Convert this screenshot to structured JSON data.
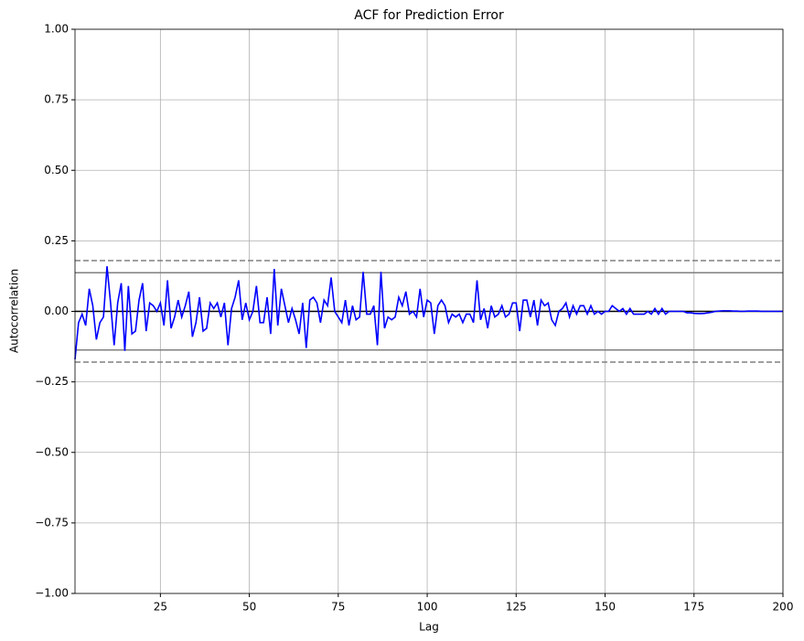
{
  "chart_data": {
    "type": "line",
    "title": "ACF for Prediction Error",
    "x_label": "Lag",
    "y_label": "Autocorrelation",
    "x": [
      1,
      2,
      3,
      4,
      5,
      6,
      7,
      8,
      9,
      10,
      11,
      12,
      13,
      14,
      15,
      16,
      17,
      18,
      19,
      20,
      21,
      22,
      23,
      24,
      25,
      26,
      27,
      28,
      29,
      30,
      31,
      32,
      33,
      34,
      35,
      36,
      37,
      38,
      39,
      40,
      41,
      42,
      43,
      44,
      45,
      46,
      47,
      48,
      49,
      50,
      51,
      52,
      53,
      54,
      55,
      56,
      57,
      58,
      59,
      60,
      61,
      62,
      63,
      64,
      65,
      66,
      67,
      68,
      69,
      70,
      71,
      72,
      73,
      74,
      75,
      76,
      77,
      78,
      79,
      80,
      81,
      82,
      83,
      84,
      85,
      86,
      87,
      88,
      89,
      90,
      91,
      92,
      93,
      94,
      95,
      96,
      97,
      98,
      99,
      100,
      101,
      102,
      103,
      104,
      105,
      106,
      107,
      108,
      109,
      110,
      111,
      112,
      113,
      114,
      115,
      116,
      117,
      118,
      119,
      120,
      121,
      122,
      123,
      124,
      125,
      126,
      127,
      128,
      129,
      130,
      131,
      132,
      133,
      134,
      135,
      136,
      137,
      138,
      139,
      140,
      141,
      142,
      143,
      144,
      145,
      146,
      147,
      148,
      149,
      150,
      151,
      152,
      153,
      154,
      155,
      156,
      157,
      158,
      159,
      160,
      161,
      162,
      163,
      164,
      165,
      166,
      167,
      168,
      169,
      170,
      171,
      172,
      173,
      174,
      175,
      176,
      177,
      178,
      179,
      180,
      181,
      182,
      183,
      184,
      185,
      186,
      187,
      188,
      189,
      190,
      191,
      192,
      193,
      194,
      195,
      196,
      197,
      198,
      199,
      200
    ],
    "values": [
      -0.17,
      -0.04,
      -0.01,
      -0.05,
      0.08,
      0.02,
      -0.1,
      -0.04,
      -0.02,
      0.16,
      0.03,
      -0.12,
      0.03,
      0.1,
      -0.14,
      0.09,
      -0.08,
      -0.07,
      0.04,
      0.1,
      -0.07,
      0.03,
      0.02,
      0.0,
      0.03,
      -0.05,
      0.11,
      -0.06,
      -0.02,
      0.04,
      -0.02,
      0.02,
      0.07,
      -0.09,
      -0.04,
      0.05,
      -0.07,
      -0.06,
      0.03,
      0.01,
      0.03,
      -0.02,
      0.03,
      -0.12,
      0.01,
      0.05,
      0.11,
      -0.03,
      0.03,
      -0.03,
      0.0,
      0.09,
      -0.04,
      -0.04,
      0.05,
      -0.08,
      0.15,
      -0.05,
      0.08,
      0.02,
      -0.04,
      0.01,
      -0.03,
      -0.08,
      0.03,
      -0.13,
      0.04,
      0.05,
      0.03,
      -0.04,
      0.04,
      0.02,
      0.12,
      0.0,
      -0.02,
      -0.04,
      0.04,
      -0.05,
      0.02,
      -0.03,
      -0.02,
      0.14,
      -0.01,
      -0.01,
      0.02,
      -0.12,
      0.14,
      -0.06,
      -0.02,
      -0.03,
      -0.02,
      0.05,
      0.02,
      0.07,
      -0.01,
      0.0,
      -0.02,
      0.08,
      -0.02,
      0.04,
      0.03,
      -0.08,
      0.02,
      0.04,
      0.02,
      -0.04,
      -0.01,
      -0.02,
      -0.01,
      -0.04,
      -0.01,
      -0.01,
      -0.04,
      0.11,
      -0.03,
      0.01,
      -0.06,
      0.02,
      -0.02,
      -0.01,
      0.02,
      -0.02,
      -0.01,
      0.03,
      0.03,
      -0.07,
      0.04,
      0.04,
      -0.02,
      0.04,
      -0.05,
      0.04,
      0.02,
      0.03,
      -0.03,
      -0.05,
      0.0,
      0.01,
      0.03,
      -0.02,
      0.02,
      -0.01,
      0.02,
      0.02,
      -0.01,
      0.02,
      -0.01,
      0.0,
      -0.01,
      0.0,
      0.0,
      0.02,
      0.01,
      0.0,
      0.01,
      -0.01,
      0.01,
      -0.01,
      -0.01,
      -0.01,
      -0.01,
      0.0,
      -0.01,
      0.01,
      -0.01,
      0.01,
      -0.01,
      0.0,
      0.0,
      0.0,
      0.0,
      0.0,
      -0.005,
      -0.005,
      -0.007,
      -0.008,
      -0.008,
      -0.007,
      -0.005,
      -0.003,
      0.0,
      0.001,
      0.002,
      0.002,
      0.002,
      0.001,
      0.001,
      0.0,
      0.0,
      0.001,
      0.001,
      0.001,
      0.001,
      0.0,
      0.0,
      0.0,
      0.0,
      0.0,
      0.0,
      0.0
    ],
    "color": "#0000ff",
    "hlines": [
      {
        "value": 0.18,
        "style": "dashed",
        "color": "#808080"
      },
      {
        "value": 0.137,
        "style": "solid",
        "color": "#808080"
      },
      {
        "value": 0,
        "style": "solid",
        "color": "#000000"
      },
      {
        "value": -0.137,
        "style": "solid",
        "color": "#808080"
      },
      {
        "value": -0.18,
        "style": "dashed",
        "color": "#808080"
      }
    ],
    "xlim": [
      1,
      200
    ],
    "xticks": [
      25,
      50,
      75,
      100,
      125,
      150,
      175,
      200
    ],
    "ylim": [
      -1,
      1
    ],
    "yticks": [
      {
        "value": -1,
        "label": "−1.00"
      },
      {
        "value": -0.75,
        "label": "−0.75"
      },
      {
        "value": -0.5,
        "label": "−0.50"
      },
      {
        "value": -0.25,
        "label": "−0.25"
      },
      {
        "value": 0,
        "label": "0.00"
      },
      {
        "value": 0.25,
        "label": "0.25"
      },
      {
        "value": 0.5,
        "label": "0.50"
      },
      {
        "value": 0.75,
        "label": "0.75"
      },
      {
        "value": 1,
        "label": "1.00"
      }
    ],
    "grid": true
  }
}
